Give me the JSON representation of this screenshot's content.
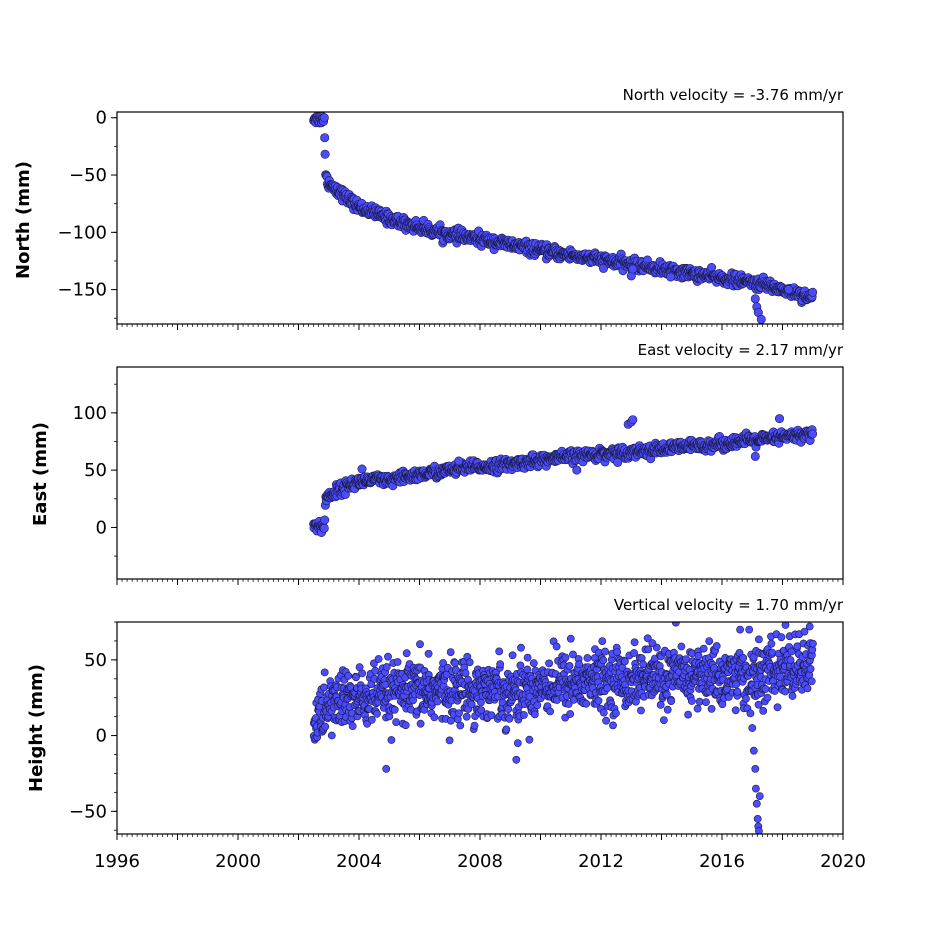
{
  "chart_data": [
    {
      "type": "scatter",
      "title": "North velocity = -3.76 mm/yr",
      "ylabel": "North (mm)",
      "xlim": [
        1996,
        2020
      ],
      "ylim": [
        -180,
        5
      ],
      "yticks": [
        0,
        -50,
        -100,
        -150
      ],
      "ytick_labels": [
        "0",
        "−50",
        "−100",
        "−150"
      ],
      "point_color": "#4b4bff",
      "series": [
        {
          "x": [
            2002.5,
            2002.7,
            2002.85,
            2002.9,
            2003.0,
            2003.3,
            2003.6,
            2004.0,
            2004.5,
            2005.0,
            2005.5,
            2006.0,
            2006.5,
            2007.0,
            2007.5,
            2008.0,
            2008.5,
            2009.0,
            2009.5,
            2010.0,
            2010.5,
            2011.0,
            2011.5,
            2012.0,
            2012.5,
            2013.0,
            2013.5,
            2014.0,
            2014.5,
            2015.0,
            2015.5,
            2016.0,
            2016.5,
            2017.0,
            2017.5,
            2018.0,
            2018.5,
            2019.0
          ],
          "y": [
            0,
            -1,
            0,
            -51,
            -57,
            -63,
            -70,
            -78,
            -83,
            -88,
            -92,
            -96,
            -99,
            -102,
            -104,
            -106,
            -108,
            -111,
            -113,
            -116,
            -118,
            -120,
            -122,
            -124,
            -126,
            -128,
            -130,
            -132,
            -134,
            -136,
            -138,
            -140,
            -142,
            -144,
            -146,
            -150,
            -153,
            -157
          ],
          "spread": 2.5
        }
      ],
      "outliers": {
        "x": [
          2013.0,
          2013.05,
          2014.3,
          2017.1,
          2017.15,
          2017.2,
          2017.3,
          2018.2
        ],
        "y": [
          -138,
          -132,
          -139,
          -158,
          -165,
          -170,
          -176,
          -150
        ]
      }
    },
    {
      "type": "scatter",
      "title": "East velocity = 2.17 mm/yr",
      "ylabel": "East (mm)",
      "xlim": [
        1996,
        2020
      ],
      "ylim": [
        -45,
        140
      ],
      "yticks": [
        0,
        50,
        100
      ],
      "ytick_labels": [
        "0",
        "50",
        "100"
      ],
      "point_color": "#4b4bff",
      "series": [
        {
          "x": [
            2002.5,
            2002.7,
            2002.85,
            2002.9,
            2003.0,
            2003.3,
            2003.6,
            2004.0,
            2004.5,
            2005.0,
            2005.5,
            2006.0,
            2006.5,
            2007.0,
            2007.5,
            2008.0,
            2008.5,
            2009.0,
            2009.5,
            2010.0,
            2010.5,
            2011.0,
            2011.5,
            2012.0,
            2012.5,
            2013.0,
            2013.5,
            2014.0,
            2014.5,
            2015.0,
            2015.5,
            2016.0,
            2016.5,
            2017.0,
            2017.5,
            2018.0,
            2018.5,
            2019.0
          ],
          "y": [
            2,
            1,
            0,
            24,
            28,
            32,
            36,
            40,
            42,
            40,
            44,
            46,
            48,
            50,
            52,
            53,
            54,
            55,
            57,
            59,
            60,
            62,
            63,
            64,
            65,
            66,
            67,
            68,
            70,
            71,
            72,
            73,
            75,
            76,
            77,
            79,
            80,
            82
          ],
          "spread": 2.5
        }
      ],
      "outliers": {
        "x": [
          2012.9,
          2013.0,
          2013.05,
          2011.2,
          2017.1,
          2017.9,
          2007.3,
          2004.1
        ],
        "y": [
          90,
          92,
          94,
          50,
          62,
          95,
          58,
          51
        ]
      }
    },
    {
      "type": "scatter",
      "title": "Vertical velocity = 1.70 mm/yr",
      "ylabel": "Height (mm)",
      "xlim": [
        1996,
        2020
      ],
      "xticks": [
        1996,
        2000,
        2004,
        2008,
        2012,
        2016,
        2020
      ],
      "xtick_labels": [
        "1996",
        "2000",
        "2004",
        "2008",
        "2012",
        "2016",
        "2020"
      ],
      "ylim": [
        -65,
        75
      ],
      "yticks": [
        50,
        0,
        -50
      ],
      "ytick_labels": [
        "50",
        "0",
        "−50"
      ],
      "point_color": "#4b4bff",
      "series": [
        {
          "x": [
            2002.5,
            2003.0,
            2003.5,
            2004.0,
            2004.5,
            2005.0,
            2005.5,
            2006.0,
            2006.5,
            2007.0,
            2007.5,
            2008.0,
            2008.5,
            2009.0,
            2009.5,
            2010.0,
            2010.5,
            2011.0,
            2011.5,
            2012.0,
            2012.5,
            2013.0,
            2013.5,
            2014.0,
            2014.5,
            2015.0,
            2015.5,
            2016.0,
            2016.5,
            2017.0,
            2017.5,
            2018.0,
            2018.5,
            2019.0
          ],
          "y": [
            8,
            20,
            24,
            24,
            26,
            27,
            28,
            29,
            29,
            30,
            31,
            30,
            31,
            29,
            30,
            34,
            35,
            35,
            36,
            36,
            37,
            37,
            38,
            38,
            39,
            39,
            40,
            38,
            40,
            36,
            42,
            44,
            45,
            46
          ],
          "spread": 10
        }
      ],
      "outliers": {
        "x": [
          2017.0,
          2017.05,
          2017.1,
          2017.12,
          2017.15,
          2017.18,
          2017.2,
          2017.22,
          2017.25,
          2004.9,
          2009.2,
          2009.25,
          2016.9,
          2018.1,
          2018.9,
          2006.3,
          2011.0,
          2013.7,
          2016.6
        ],
        "y": [
          5,
          -10,
          -22,
          -35,
          -45,
          -55,
          -60,
          -63,
          -40,
          -22,
          -16,
          -5,
          70,
          73,
          72,
          54,
          64,
          61,
          70
        ]
      }
    }
  ]
}
